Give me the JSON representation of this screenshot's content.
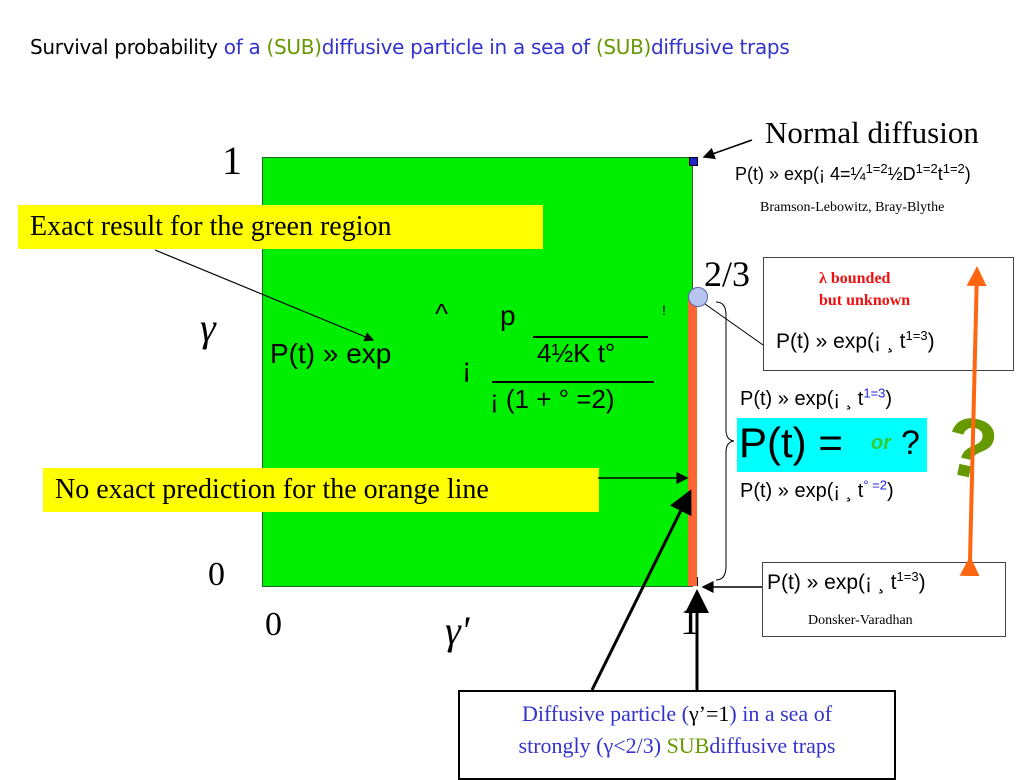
{
  "title": {
    "part1": "Survival probability ",
    "part2": "of a ",
    "part3": "(SUB)",
    "part4": "diffusive particle in a sea of ",
    "part5": "(SUB)",
    "part6": "diffusive traps"
  },
  "axes": {
    "y_top": "1",
    "y_label": "γ",
    "y_bottom": "0",
    "x_left": "0",
    "x_label": "γ'",
    "x_right": "1",
    "critical": "2/3"
  },
  "green_formula": {
    "lhs": "P(t) » exp",
    "minus": "¡",
    "hat": "^",
    "sqrt": "p",
    "num": "4½K t°",
    "den": "¡ (1 + ° =2)",
    "bang": "!"
  },
  "callouts": {
    "exact": "Exact result for the green region",
    "no_exact": "No exact prediction for the orange line"
  },
  "normal": {
    "heading": "Normal diffusion",
    "formula": "P(t) » exp(¡ 4=¼",
    "sup1": "1=2",
    "mid": "½D",
    "sup2": "1=2",
    "t": "t",
    "sup3": "1=2",
    "close": ")",
    "cite": "Bramson-Lebowitz, Bray-Blythe"
  },
  "lambda_box": {
    "line1": "λ bounded",
    "line2": "but unknown",
    "formula": "P(t) » exp(¡ ¸ t",
    "sup": "1=3",
    "close": ")"
  },
  "middle": {
    "f1": "P(t) » exp(¡ ¸ t",
    "f1_sup": "1=3",
    "close": ")",
    "f2": "P(t) » exp(¡ ¸ t",
    "f2_sup": "° =2",
    "cyan_lhs": "P(t) =",
    "or": "or",
    "q": "?",
    "big_q": "?"
  },
  "donsker": {
    "formula": "P(t) » exp(¡ ¸ t",
    "sup": "1=3",
    "close": ")",
    "cite": "Donsker-Varadhan"
  },
  "bottom_box": {
    "l1a": "Diffusive particle (",
    "l1b": "γ’=1",
    "l1c": ")  in a sea of",
    "l2a": "strongly (γ<2/3) ",
    "l2b": "SUB",
    "l2c": "diffusive traps"
  },
  "colors": {
    "green_region": "#00ee00",
    "orange_line": "#ff6633",
    "callout": "#ffff00",
    "cyan": "#00ffff",
    "blue_text": "#3333cc",
    "olive": "#669900",
    "red": "#ee1111"
  }
}
